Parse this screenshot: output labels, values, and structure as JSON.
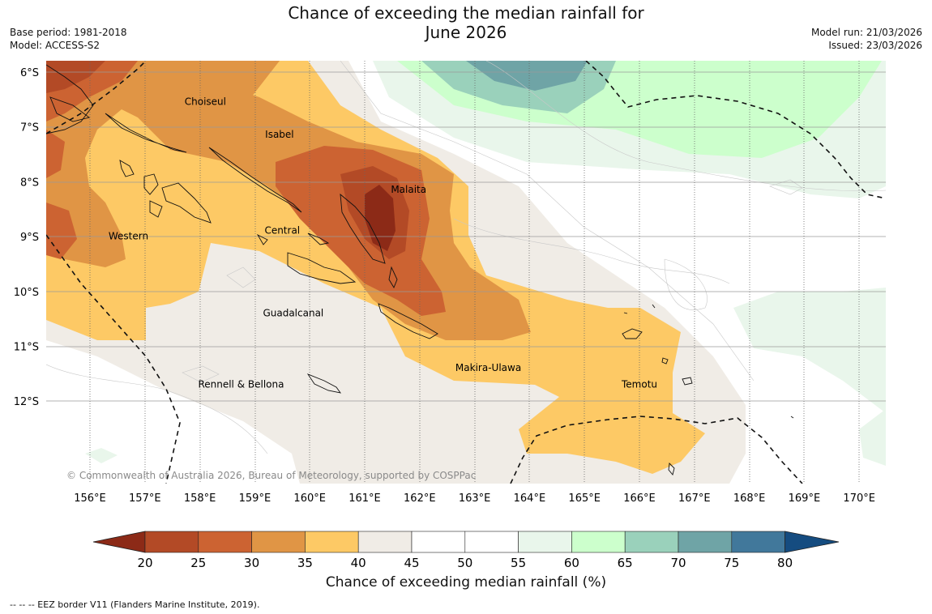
{
  "title": {
    "line1": "Chance of exceeding the median rainfall for",
    "line2": "June 2026"
  },
  "meta_left": {
    "base_period": "Base period: 1981-2018",
    "model": "Model: ACCESS-S2"
  },
  "meta_right": {
    "model_run": "Model run: 21/03/2026",
    "issued": "Issued: 23/03/2026"
  },
  "map": {
    "latitude_labels": [
      "6°S",
      "7°S",
      "8°S",
      "9°S",
      "10°S",
      "11°S",
      "12°S"
    ],
    "longitude_labels": [
      "156°E",
      "157°E",
      "158°E",
      "159°E",
      "160°E",
      "161°E",
      "162°E",
      "163°E",
      "164°E",
      "165°E",
      "166°E",
      "167°E",
      "168°E",
      "169°E",
      "170°E"
    ],
    "regions": [
      {
        "name": "Choiseul",
        "lon": 158.1,
        "lat": -6.6
      },
      {
        "name": "Isabel",
        "lon": 159.45,
        "lat": -7.2
      },
      {
        "name": "Malaita",
        "lon": 161.8,
        "lat": -8.2
      },
      {
        "name": "Western",
        "lon": 156.7,
        "lat": -9.05
      },
      {
        "name": "Central",
        "lon": 159.5,
        "lat": -8.95
      },
      {
        "name": "Guadalcanal",
        "lon": 159.7,
        "lat": -10.45
      },
      {
        "name": "Makira-Ulawa",
        "lon": 163.25,
        "lat": -11.45
      },
      {
        "name": "Rennell & Bellona",
        "lon": 158.75,
        "lat": -11.75
      },
      {
        "name": "Temotu",
        "lon": 166.0,
        "lat": -11.75
      }
    ],
    "copyright": "© Commonwealth of Australia 2026, Bureau of Meteorology, supported by COSPPac"
  },
  "colorbar": {
    "ticks": [
      "20",
      "25",
      "30",
      "35",
      "40",
      "45",
      "50",
      "55",
      "60",
      "65",
      "70",
      "75",
      "80"
    ],
    "colors": [
      "#8c2a17",
      "#b34a26",
      "#cc6332",
      "#e09545",
      "#fdc965",
      "#f0ece6",
      "#ffffff",
      "#ffffff",
      "#e9f6eb",
      "#ccffcc",
      "#9ad1bb",
      "#6fa4a6",
      "#41789b",
      "#154c80"
    ],
    "title": "Chance of exceeding median rainfall (%)"
  },
  "footnote": "--  --  -- EEZ border V11 (Flanders Marine Institute, 2019)."
}
